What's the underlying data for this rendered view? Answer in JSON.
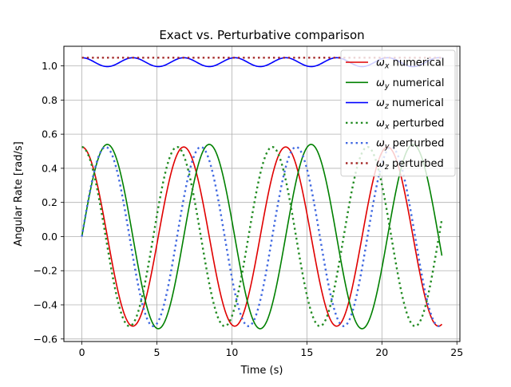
{
  "chart_data": {
    "type": "line",
    "title": "Exact vs. Perturbative comparison",
    "xlabel": "Time (s)",
    "ylabel": "Angular Rate [rad/s]",
    "xlim": [
      -1.2,
      25.2
    ],
    "ylim": [
      -0.615,
      1.115
    ],
    "xticks": [
      0,
      5,
      10,
      15,
      20,
      25
    ],
    "yticks": [
      -0.6,
      -0.4,
      -0.2,
      0.0,
      0.2,
      0.4,
      0.6,
      0.8,
      1.0
    ],
    "xtick_labels": [
      "0",
      "5",
      "10",
      "15",
      "20",
      "25"
    ],
    "ytick_labels": [
      "−0.6",
      "−0.4",
      "−0.2",
      "0.0",
      "0.2",
      "0.4",
      "0.6",
      "0.8",
      "1.0"
    ],
    "grid": true,
    "legend_position": "top-right",
    "time_span": [
      0,
      24
    ],
    "series": [
      {
        "name": "ωx numerical",
        "symbol": "ω",
        "sub": "x",
        "suffix": " numerical",
        "color": "#e00000",
        "style": "solid",
        "model": "cos",
        "amplitude": 0.525,
        "omega": 0.925,
        "offset": 0.0
      },
      {
        "name": "ωy numerical",
        "symbol": "ω",
        "sub": "y",
        "suffix": " numerical",
        "color": "#008000",
        "style": "solid",
        "model": "sin",
        "amplitude": 0.54,
        "omega": 0.925,
        "offset": 0.0
      },
      {
        "name": "ωz numerical",
        "symbol": "ω",
        "sub": "z",
        "suffix": " numerical",
        "color": "#0000ff",
        "style": "solid",
        "model": "ripple",
        "amplitude": 0.026,
        "omega": 1.85,
        "offset": 1.022
      },
      {
        "name": "ωx perturbed",
        "symbol": "ω",
        "sub": "x",
        "suffix": " perturbed",
        "color": "#228b22",
        "style": "dotted",
        "model": "cos",
        "amplitude": 0.525,
        "omega": 0.99,
        "offset": 0.0
      },
      {
        "name": "ωy perturbed",
        "symbol": "ω",
        "sub": "y",
        "suffix": " perturbed",
        "color": "#4169e1",
        "style": "dotted",
        "model": "sin",
        "amplitude": 0.525,
        "omega": 0.99,
        "offset": 0.0
      },
      {
        "name": "ωz perturbed",
        "symbol": "ω",
        "sub": "z",
        "suffix": " perturbed",
        "color": "#a52a2a",
        "style": "dotted",
        "model": "const",
        "amplitude": 0.0,
        "omega": 0.0,
        "offset": 1.048
      }
    ]
  }
}
